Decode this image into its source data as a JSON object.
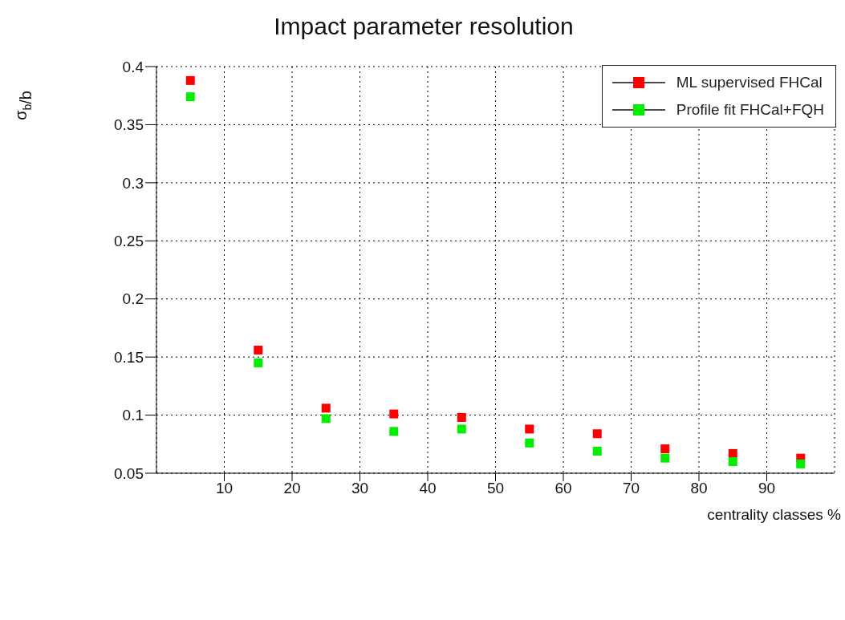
{
  "chart_data": {
    "type": "scatter",
    "title": "Impact parameter resolution",
    "xlabel": "centrality classes %",
    "ylabel": "σ$_{b}$/b",
    "x": [
      5,
      15,
      25,
      35,
      45,
      55,
      65,
      75,
      85,
      95
    ],
    "series": [
      {
        "name": "ML supervised FHCal",
        "color": "#ff0000",
        "values": [
          0.388,
          0.156,
          0.106,
          0.101,
          0.098,
          0.088,
          0.084,
          0.071,
          0.067,
          0.063
        ]
      },
      {
        "name": "Profile fit FHCal+FQH",
        "color": "#00ee00",
        "values": [
          0.374,
          0.145,
          0.097,
          0.086,
          0.088,
          0.076,
          0.069,
          0.063,
          0.06,
          0.058
        ]
      }
    ],
    "xlim": [
      0,
      100
    ],
    "xticks": [
      10,
      20,
      30,
      40,
      50,
      60,
      70,
      80,
      90
    ],
    "ylim": [
      0.05,
      0.4
    ],
    "yticks": [
      0.05,
      0.1,
      0.15,
      0.2,
      0.25,
      0.3,
      0.35,
      0.4
    ],
    "grid": true,
    "legend": "top right",
    "marker": "square"
  }
}
